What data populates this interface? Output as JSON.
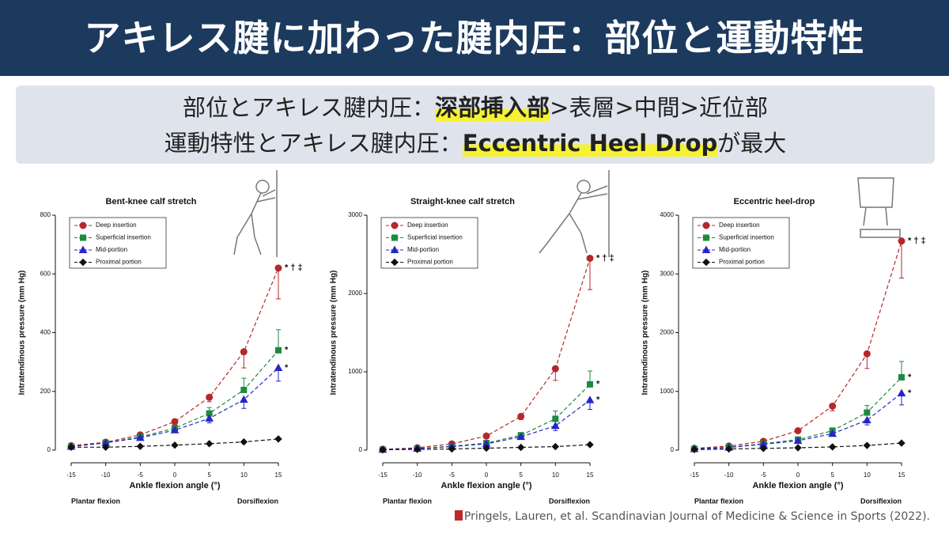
{
  "header": {
    "title": "アキレス腱に加わった腱内圧：部位と運動特性"
  },
  "summary": [
    [
      "部位とアキレス腱内圧：",
      "深部挿入部",
      ">表層>中間>近位部"
    ],
    [
      "運動特性とアキレス腱内圧：",
      "Eccentric Heel Drop",
      "が最大"
    ]
  ],
  "citation": "Pringels, Lauren, et al. Scandinavian Journal of Medicine & Science in Sports (2022).",
  "chart_data": [
    {
      "type": "line",
      "title": "Bent-knee calf stretch",
      "xlabel": "Ankle flexion angle (°)",
      "ylabel": "Intratendinous pressure (mm Hg)",
      "x_annotations": [
        "Plantar flexion",
        "Dorsiflexion"
      ],
      "legend": "upper left",
      "x": [
        -15,
        -10,
        -5,
        0,
        5,
        10,
        15
      ],
      "xlim": [
        -15,
        15
      ],
      "xticks": [
        -15,
        -10,
        -5,
        0,
        5,
        10,
        15
      ],
      "ylim": [
        0,
        800
      ],
      "yticks": [
        0,
        200,
        400,
        600,
        800
      ],
      "series": [
        {
          "name": "Deep insertion",
          "color": "#b5282a",
          "marker": "circle",
          "values": [
            15,
            27,
            52,
            97,
            180,
            335,
            620
          ],
          "errors": [
            5,
            5,
            8,
            10,
            15,
            55,
            105
          ],
          "error_side": "down",
          "annotation": "* † ‡"
        },
        {
          "name": "Superficial insertion",
          "color": "#1e8a3e",
          "marker": "square",
          "values": [
            12,
            25,
            45,
            75,
            125,
            205,
            340
          ],
          "errors": [
            3,
            3,
            5,
            8,
            20,
            40,
            70
          ],
          "error_side": "up",
          "annotation": "*"
        },
        {
          "name": "Mid-portion",
          "color": "#2626c8",
          "marker": "triangle",
          "values": [
            12,
            25,
            42,
            68,
            108,
            172,
            280
          ],
          "errors": [
            3,
            3,
            5,
            8,
            15,
            30,
            45
          ],
          "error_side": "down",
          "annotation": "*"
        },
        {
          "name": "Proximal portion",
          "color": "#111111",
          "marker": "diamond",
          "values": [
            10,
            10,
            13,
            17,
            22,
            28,
            38
          ]
        }
      ]
    },
    {
      "type": "line",
      "title": "Straight-knee calf stretch",
      "xlabel": "Ankle flexion angle (°)",
      "ylabel": "Intratendinous pressure (mm Hg)",
      "x_annotations": [
        "Plantar flexion",
        "Dorsiflexion"
      ],
      "legend": "upper left",
      "x": [
        -15,
        -10,
        -5,
        0,
        5,
        10,
        15
      ],
      "xlim": [
        -15,
        15
      ],
      "xticks": [
        -15,
        -10,
        -5,
        0,
        5,
        10,
        15
      ],
      "ylim": [
        0,
        3000
      ],
      "yticks": [
        0,
        1000,
        2000,
        3000
      ],
      "series": [
        {
          "name": "Deep insertion",
          "color": "#b5282a",
          "marker": "circle",
          "values": [
            10,
            30,
            80,
            180,
            430,
            1040,
            2450
          ],
          "errors": [
            5,
            10,
            15,
            20,
            40,
            150,
            400
          ],
          "error_side": "down",
          "annotation": "* † ‡"
        },
        {
          "name": "Superficial insertion",
          "color": "#1e8a3e",
          "marker": "square",
          "values": [
            8,
            20,
            50,
            90,
            190,
            400,
            840
          ],
          "errors": [
            3,
            5,
            10,
            15,
            30,
            100,
            170
          ],
          "error_side": "up",
          "annotation": "*"
        },
        {
          "name": "Mid-portion",
          "color": "#2626c8",
          "marker": "triangle",
          "values": [
            8,
            20,
            45,
            80,
            170,
            310,
            640
          ],
          "errors": [
            3,
            5,
            10,
            15,
            30,
            60,
            120
          ],
          "error_side": "down",
          "annotation": "*"
        },
        {
          "name": "Proximal portion",
          "color": "#111111",
          "marker": "diamond",
          "values": [
            5,
            10,
            15,
            25,
            35,
            45,
            70
          ]
        }
      ]
    },
    {
      "type": "line",
      "title": "Eccentric heel-drop",
      "xlabel": "Ankle flexion angle (°)",
      "ylabel": "Intratendinous pressure (mm Hg)",
      "x_annotations": [
        "Plantar flexion",
        "Dorsiflexion"
      ],
      "legend": "upper left",
      "x": [
        -15,
        -10,
        -5,
        0,
        5,
        10,
        15
      ],
      "xlim": [
        -15,
        15
      ],
      "xticks": [
        -15,
        -10,
        -5,
        0,
        5,
        10,
        15
      ],
      "ylim": [
        0,
        4000
      ],
      "yticks": [
        0,
        1000,
        2000,
        3000,
        4000
      ],
      "series": [
        {
          "name": "Deep insertion",
          "color": "#b5282a",
          "marker": "circle",
          "values": [
            30,
            70,
            150,
            330,
            750,
            1640,
            3560
          ],
          "errors": [
            10,
            15,
            30,
            40,
            80,
            250,
            630
          ],
          "error_side": "down",
          "annotation": "* † ‡"
        },
        {
          "name": "Superficial insertion",
          "color": "#1e8a3e",
          "marker": "square",
          "values": [
            20,
            50,
            110,
            180,
            330,
            640,
            1240
          ],
          "errors": [
            5,
            10,
            20,
            30,
            50,
            120,
            270
          ],
          "error_side": "up",
          "annotation": "*"
        },
        {
          "name": "Mid-portion",
          "color": "#2626c8",
          "marker": "triangle",
          "values": [
            20,
            45,
            100,
            160,
            280,
            510,
            970
          ],
          "errors": [
            5,
            10,
            20,
            30,
            40,
            80,
            200
          ],
          "error_side": "down",
          "annotation": "*"
        },
        {
          "name": "Proximal portion",
          "color": "#111111",
          "marker": "diamond",
          "values": [
            10,
            20,
            30,
            40,
            55,
            80,
            120
          ]
        }
      ]
    }
  ]
}
